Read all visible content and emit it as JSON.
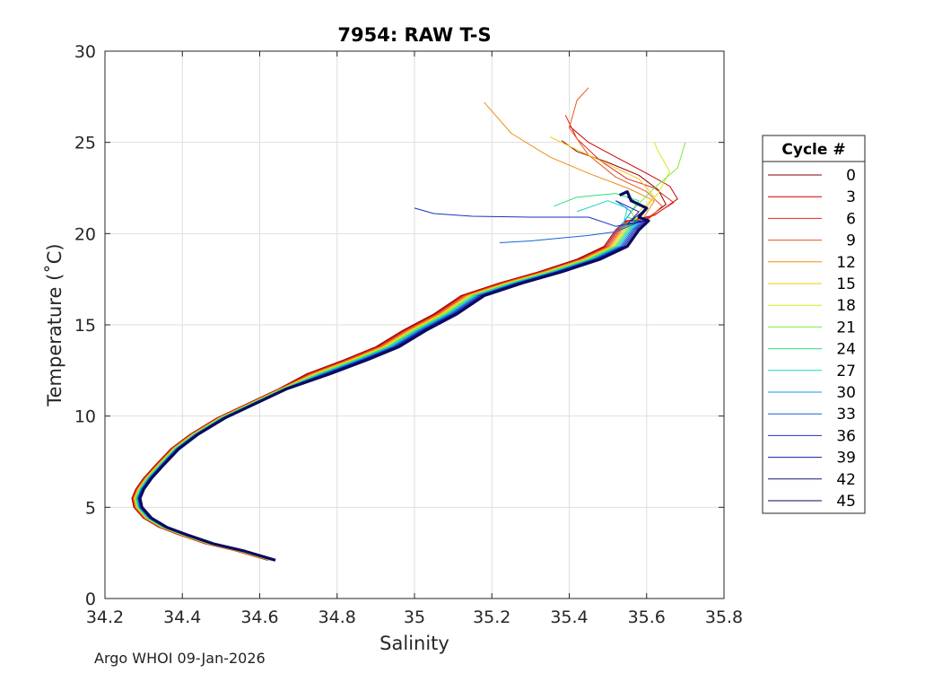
{
  "chart_data": {
    "type": "line",
    "title": "7954: RAW T-S",
    "xlabel": "Salinity",
    "ylabel": "Temperature (˚C)",
    "xlim": [
      34.2,
      35.8
    ],
    "ylim": [
      0,
      30
    ],
    "grid": true,
    "x_ticks": [
      "34.2",
      "34.4",
      "34.6",
      "34.8",
      "35",
      "35.2",
      "35.4",
      "35.6",
      "35.8"
    ],
    "y_ticks": [
      "0",
      "5",
      "10",
      "15",
      "20",
      "25",
      "30"
    ],
    "legend": {
      "title": "Cycle #",
      "placement": "right-outside",
      "entries": [
        {
          "label": "0",
          "color": "#8b0000"
        },
        {
          "label": "3",
          "color": "#cc0000"
        },
        {
          "label": "6",
          "color": "#e52a1c"
        },
        {
          "label": "9",
          "color": "#e8581e"
        },
        {
          "label": "12",
          "color": "#ee8e17"
        },
        {
          "label": "15",
          "color": "#f2c81a"
        },
        {
          "label": "18",
          "color": "#d6e820"
        },
        {
          "label": "21",
          "color": "#7ee83c"
        },
        {
          "label": "24",
          "color": "#2be07e"
        },
        {
          "label": "27",
          "color": "#19d6c2"
        },
        {
          "label": "30",
          "color": "#139ce6"
        },
        {
          "label": "33",
          "color": "#1664d6"
        },
        {
          "label": "36",
          "color": "#1433c2"
        },
        {
          "label": "39",
          "color": "#1a1aa8"
        },
        {
          "label": "42",
          "color": "#141485"
        },
        {
          "label": "45",
          "color": "#0a0a5e"
        }
      ]
    },
    "base_profile": [
      [
        34.63,
        2.1
      ],
      [
        34.55,
        2.6
      ],
      [
        34.47,
        3.0
      ],
      [
        34.4,
        3.5
      ],
      [
        34.35,
        3.9
      ],
      [
        34.31,
        4.4
      ],
      [
        34.285,
        5.0
      ],
      [
        34.28,
        5.5
      ],
      [
        34.29,
        6.0
      ],
      [
        34.31,
        6.6
      ],
      [
        34.34,
        7.3
      ],
      [
        34.38,
        8.2
      ],
      [
        34.43,
        9.0
      ],
      [
        34.5,
        9.9
      ],
      [
        34.58,
        10.7
      ],
      [
        34.66,
        11.5
      ],
      [
        34.75,
        12.3
      ],
      [
        34.85,
        13.1
      ],
      [
        34.93,
        13.8
      ],
      [
        35.0,
        14.7
      ],
      [
        35.08,
        15.6
      ],
      [
        35.15,
        16.6
      ],
      [
        35.25,
        17.3
      ],
      [
        35.35,
        17.9
      ],
      [
        35.45,
        18.6
      ],
      [
        35.52,
        19.3
      ],
      [
        35.55,
        20.2
      ],
      [
        35.575,
        20.7
      ]
    ],
    "series": [
      {
        "name": "Cycle 0",
        "color": "#8b0000",
        "upper": [
          [
            35.6,
            20.8
          ],
          [
            35.65,
            21.6
          ],
          [
            35.63,
            22.4
          ],
          [
            35.58,
            23.2
          ],
          [
            35.5,
            23.9
          ],
          [
            35.42,
            24.5
          ],
          [
            35.38,
            25.1
          ]
        ]
      },
      {
        "name": "Cycle 3",
        "color": "#cc0000",
        "upper": [
          [
            35.62,
            21.0
          ],
          [
            35.68,
            21.9
          ],
          [
            35.66,
            22.6
          ],
          [
            35.6,
            23.3
          ],
          [
            35.52,
            24.2
          ],
          [
            35.45,
            25.0
          ],
          [
            35.4,
            25.9
          ]
        ]
      },
      {
        "name": "Cycle 6",
        "color": "#e52a1c",
        "upper": [
          [
            35.61,
            20.9
          ],
          [
            35.67,
            21.7
          ],
          [
            35.62,
            22.5
          ],
          [
            35.55,
            23.0
          ],
          [
            35.48,
            24.0
          ],
          [
            35.42,
            25.2
          ],
          [
            35.39,
            26.5
          ]
        ]
      },
      {
        "name": "Cycle 9",
        "color": "#e8581e",
        "upper": [
          [
            35.6,
            20.7
          ],
          [
            35.64,
            21.5
          ],
          [
            35.6,
            22.3
          ],
          [
            35.52,
            23.1
          ],
          [
            35.45,
            24.3
          ],
          [
            35.4,
            25.8
          ],
          [
            35.42,
            27.3
          ],
          [
            35.45,
            28.0
          ]
        ]
      },
      {
        "name": "Cycle 12",
        "color": "#ee8e17",
        "upper": [
          [
            35.59,
            20.8
          ],
          [
            35.62,
            21.8
          ],
          [
            35.55,
            22.5
          ],
          [
            35.45,
            23.3
          ],
          [
            35.35,
            24.2
          ],
          [
            35.25,
            25.5
          ],
          [
            35.18,
            27.2
          ]
        ]
      },
      {
        "name": "Cycle 15",
        "color": "#f2c81a",
        "upper": [
          [
            35.58,
            20.9
          ],
          [
            35.62,
            22.0
          ],
          [
            35.58,
            23.0
          ],
          [
            35.5,
            23.8
          ],
          [
            35.42,
            24.6
          ],
          [
            35.35,
            25.3
          ]
        ]
      },
      {
        "name": "Cycle 18",
        "color": "#d6e820",
        "upper": [
          [
            35.57,
            21.0
          ],
          [
            35.63,
            22.2
          ],
          [
            35.66,
            23.4
          ],
          [
            35.63,
            24.5
          ],
          [
            35.62,
            25.0
          ]
        ]
      },
      {
        "name": "Cycle 21",
        "color": "#7ee83c",
        "upper": [
          [
            35.56,
            21.2
          ],
          [
            35.62,
            22.5
          ],
          [
            35.68,
            23.6
          ],
          [
            35.7,
            25.0
          ]
        ]
      },
      {
        "name": "Cycle 24",
        "color": "#2be07e",
        "upper": [
          [
            35.55,
            20.9
          ],
          [
            35.58,
            21.8
          ],
          [
            35.52,
            22.2
          ],
          [
            35.42,
            22.0
          ],
          [
            35.36,
            21.5
          ]
        ]
      },
      {
        "name": "Cycle 27",
        "color": "#19d6c2",
        "upper": [
          [
            35.54,
            20.5
          ],
          [
            35.55,
            21.4
          ],
          [
            35.5,
            21.8
          ],
          [
            35.42,
            21.2
          ]
        ]
      },
      {
        "name": "Cycle 30",
        "color": "#139ce6",
        "upper": [
          [
            35.53,
            20.3
          ],
          [
            35.56,
            21.2
          ],
          [
            35.52,
            21.8
          ]
        ]
      },
      {
        "name": "Cycle 33",
        "color": "#1664d6",
        "upper": [
          [
            35.52,
            20.1
          ],
          [
            35.45,
            19.9
          ],
          [
            35.3,
            19.6
          ],
          [
            35.22,
            19.5
          ]
        ]
      },
      {
        "name": "Cycle 36",
        "color": "#1433c2",
        "upper": [
          [
            35.52,
            20.4
          ],
          [
            35.45,
            20.9
          ],
          [
            35.3,
            20.9
          ],
          [
            35.15,
            20.95
          ],
          [
            35.05,
            21.1
          ],
          [
            35.0,
            21.4
          ]
        ]
      },
      {
        "name": "Cycle 39",
        "color": "#1a1aa8",
        "upper": [
          [
            35.55,
            20.5
          ],
          [
            35.58,
            21.2
          ],
          [
            35.52,
            21.8
          ]
        ]
      },
      {
        "name": "Cycle 42",
        "color": "#141485",
        "upper": [
          [
            35.56,
            20.7
          ],
          [
            35.6,
            21.4
          ],
          [
            35.55,
            22.0
          ]
        ]
      },
      {
        "name": "Cycle 45",
        "color": "#0a0a5e",
        "upper": [
          [
            35.58,
            20.9
          ],
          [
            35.6,
            21.4
          ],
          [
            35.56,
            21.8
          ],
          [
            35.55,
            22.3
          ],
          [
            35.53,
            22.1
          ]
        ],
        "bold": true
      }
    ]
  },
  "footer": "Argo WHOI 09-Jan-2026"
}
